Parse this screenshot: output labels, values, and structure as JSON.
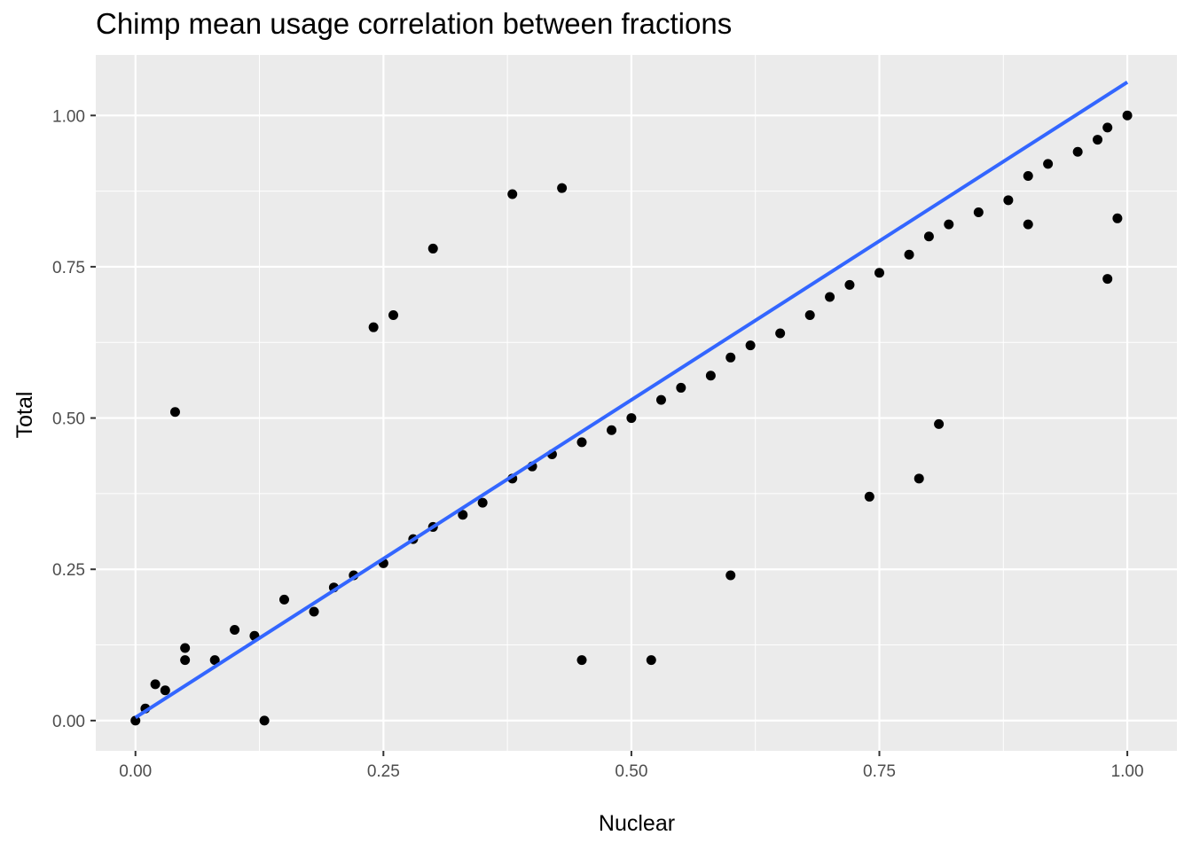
{
  "chart_data": {
    "type": "scatter",
    "title": "Chimp mean usage correlation between fractions",
    "xlabel": "Nuclear",
    "ylabel": "Total",
    "xlim": [
      -0.04,
      1.05
    ],
    "ylim": [
      -0.05,
      1.1
    ],
    "x_ticks": [
      0.0,
      0.25,
      0.5,
      0.75,
      1.0
    ],
    "x_tick_labels": [
      "0.00",
      "0.25",
      "0.50",
      "0.75",
      "1.00"
    ],
    "y_ticks": [
      0.0,
      0.25,
      0.5,
      0.75,
      1.0
    ],
    "y_tick_labels": [
      "0.00",
      "0.25",
      "0.50",
      "0.75",
      "1.00"
    ],
    "grid": true,
    "legend": "none",
    "colors": {
      "panel": "#ebebeb",
      "grid": "#ffffff",
      "points": "#000000",
      "fit_line": "#3366ff"
    },
    "series": [
      {
        "kind": "points",
        "x": [
          0.0,
          0.01,
          0.02,
          0.03,
          0.05,
          0.05,
          0.08,
          0.1,
          0.12,
          0.15,
          0.18,
          0.2,
          0.22,
          0.25,
          0.28,
          0.3,
          0.33,
          0.35,
          0.38,
          0.4,
          0.42,
          0.45,
          0.48,
          0.5,
          0.53,
          0.55,
          0.58,
          0.6,
          0.62,
          0.65,
          0.68,
          0.7,
          0.72,
          0.75,
          0.78,
          0.8,
          0.82,
          0.85,
          0.88,
          0.9,
          0.92,
          0.95,
          0.97,
          0.98,
          1.0,
          0.04,
          0.38,
          0.26,
          0.3,
          0.79,
          0.81,
          0.74,
          0.98,
          0.99,
          0.9,
          0.6,
          0.52,
          0.24,
          0.43,
          0.13,
          0.45
        ],
        "y": [
          0.0,
          0.02,
          0.06,
          0.05,
          0.1,
          0.12,
          0.1,
          0.15,
          0.14,
          0.2,
          0.18,
          0.22,
          0.24,
          0.26,
          0.3,
          0.32,
          0.34,
          0.36,
          0.4,
          0.42,
          0.44,
          0.46,
          0.48,
          0.5,
          0.53,
          0.55,
          0.57,
          0.6,
          0.62,
          0.64,
          0.67,
          0.7,
          0.72,
          0.74,
          0.77,
          0.8,
          0.82,
          0.84,
          0.86,
          0.9,
          0.92,
          0.94,
          0.96,
          0.98,
          1.0,
          0.51,
          0.87,
          0.67,
          0.78,
          0.4,
          0.49,
          0.37,
          0.73,
          0.83,
          0.82,
          0.24,
          0.1,
          0.65,
          0.88,
          0.0,
          0.1
        ]
      },
      {
        "kind": "fit_line",
        "x": [
          0.0,
          1.0
        ],
        "y": [
          0.005,
          1.055
        ]
      }
    ]
  }
}
